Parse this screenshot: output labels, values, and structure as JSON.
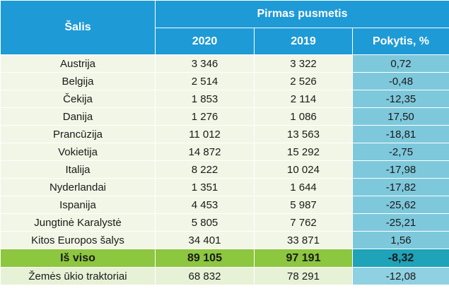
{
  "table": {
    "country_header": "Šalis",
    "period_header": "Pirmas pusmetis",
    "columns": [
      "2020",
      "2019",
      "Pokytis, %"
    ],
    "rows": [
      {
        "country": "Austrija",
        "y2020": "3 346",
        "y2019": "3 322",
        "change": "0,72"
      },
      {
        "country": "Belgija",
        "y2020": "2 514",
        "y2019": "2 526",
        "change": "-0,48"
      },
      {
        "country": "Čekija",
        "y2020": "1 853",
        "y2019": "2 114",
        "change": "-12,35"
      },
      {
        "country": "Danija",
        "y2020": "1 276",
        "y2019": "1 086",
        "change": "17,50"
      },
      {
        "country": "Prancūzija",
        "y2020": "11 012",
        "y2019": "13 563",
        "change": "-18,81"
      },
      {
        "country": "Vokietija",
        "y2020": "14 872",
        "y2019": "15 292",
        "change": "-2,75"
      },
      {
        "country": "Italija",
        "y2020": "8 222",
        "y2019": "10 024",
        "change": "-17,98"
      },
      {
        "country": "Nyderlandai",
        "y2020": "1 351",
        "y2019": "1 644",
        "change": "-17,82"
      },
      {
        "country": "Ispanija",
        "y2020": "4 453",
        "y2019": "5 987",
        "change": "-25,62"
      },
      {
        "country": "Jungtinė Karalystė",
        "y2020": "5 805",
        "y2019": "7 762",
        "change": "-25,21"
      },
      {
        "country": "Kitos Europos šalys",
        "y2020": "34 401",
        "y2019": "33 871",
        "change": "1,56"
      }
    ],
    "total": {
      "country": "Iš viso",
      "y2020": "89 105",
      "y2019": "97 191",
      "change": "-8,32"
    },
    "tractors": {
      "country": "Žemės ūkio traktoriai",
      "y2020": "68 832",
      "y2019": "78 291",
      "change": "-12,08"
    }
  }
}
